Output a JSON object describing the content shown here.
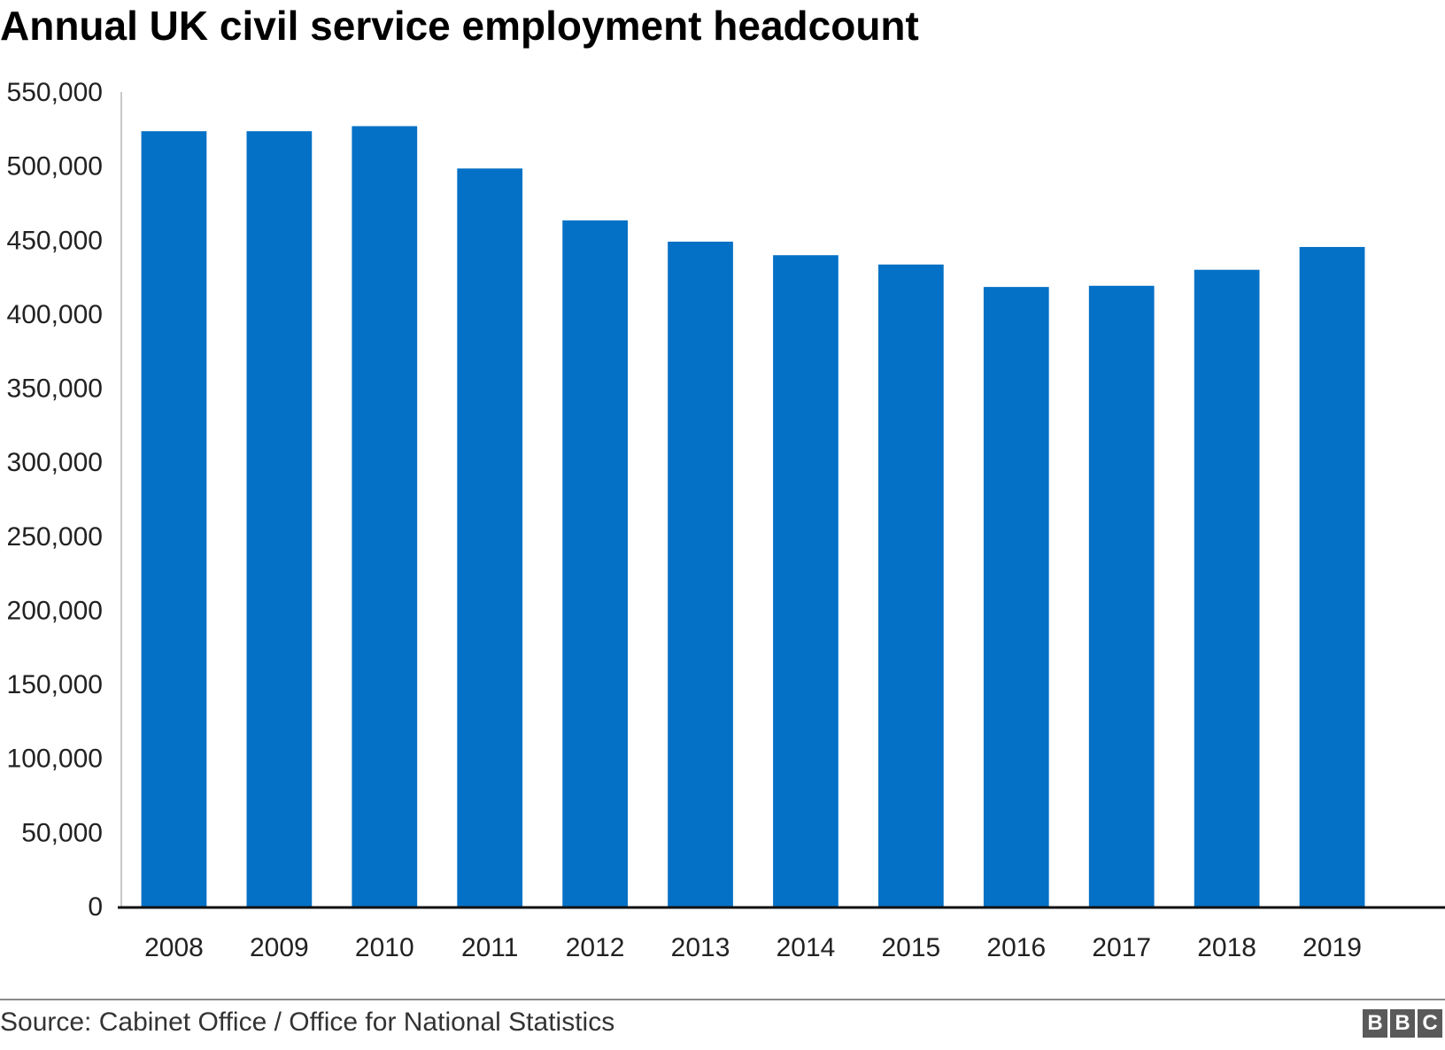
{
  "chart_data": {
    "type": "bar",
    "title": "Annual UK civil service employment headcount",
    "categories": [
      "2008",
      "2009",
      "2010",
      "2011",
      "2012",
      "2013",
      "2014",
      "2015",
      "2016",
      "2017",
      "2018",
      "2019"
    ],
    "series": [
      {
        "values": [
          523580,
          523580,
          527000,
          498400,
          463350,
          449000,
          439850,
          433560,
          418400,
          419200,
          430000,
          445400
        ]
      }
    ],
    "ylim": [
      0,
      550000
    ],
    "yticks": [
      0,
      50000,
      100000,
      150000,
      200000,
      250000,
      300000,
      350000,
      400000,
      450000,
      500000,
      550000
    ],
    "ytick_labels": [
      "0",
      "50,000",
      "100,000",
      "150,000",
      "200,000",
      "250,000",
      "300,000",
      "350,000",
      "400,000",
      "450,000",
      "500,000",
      "550,000"
    ],
    "grid": false,
    "bar_color": "#0571c6"
  },
  "footer": {
    "source": "Source: Cabinet Office / Office for National Statistics",
    "logo_letters": [
      "B",
      "B",
      "C"
    ]
  }
}
